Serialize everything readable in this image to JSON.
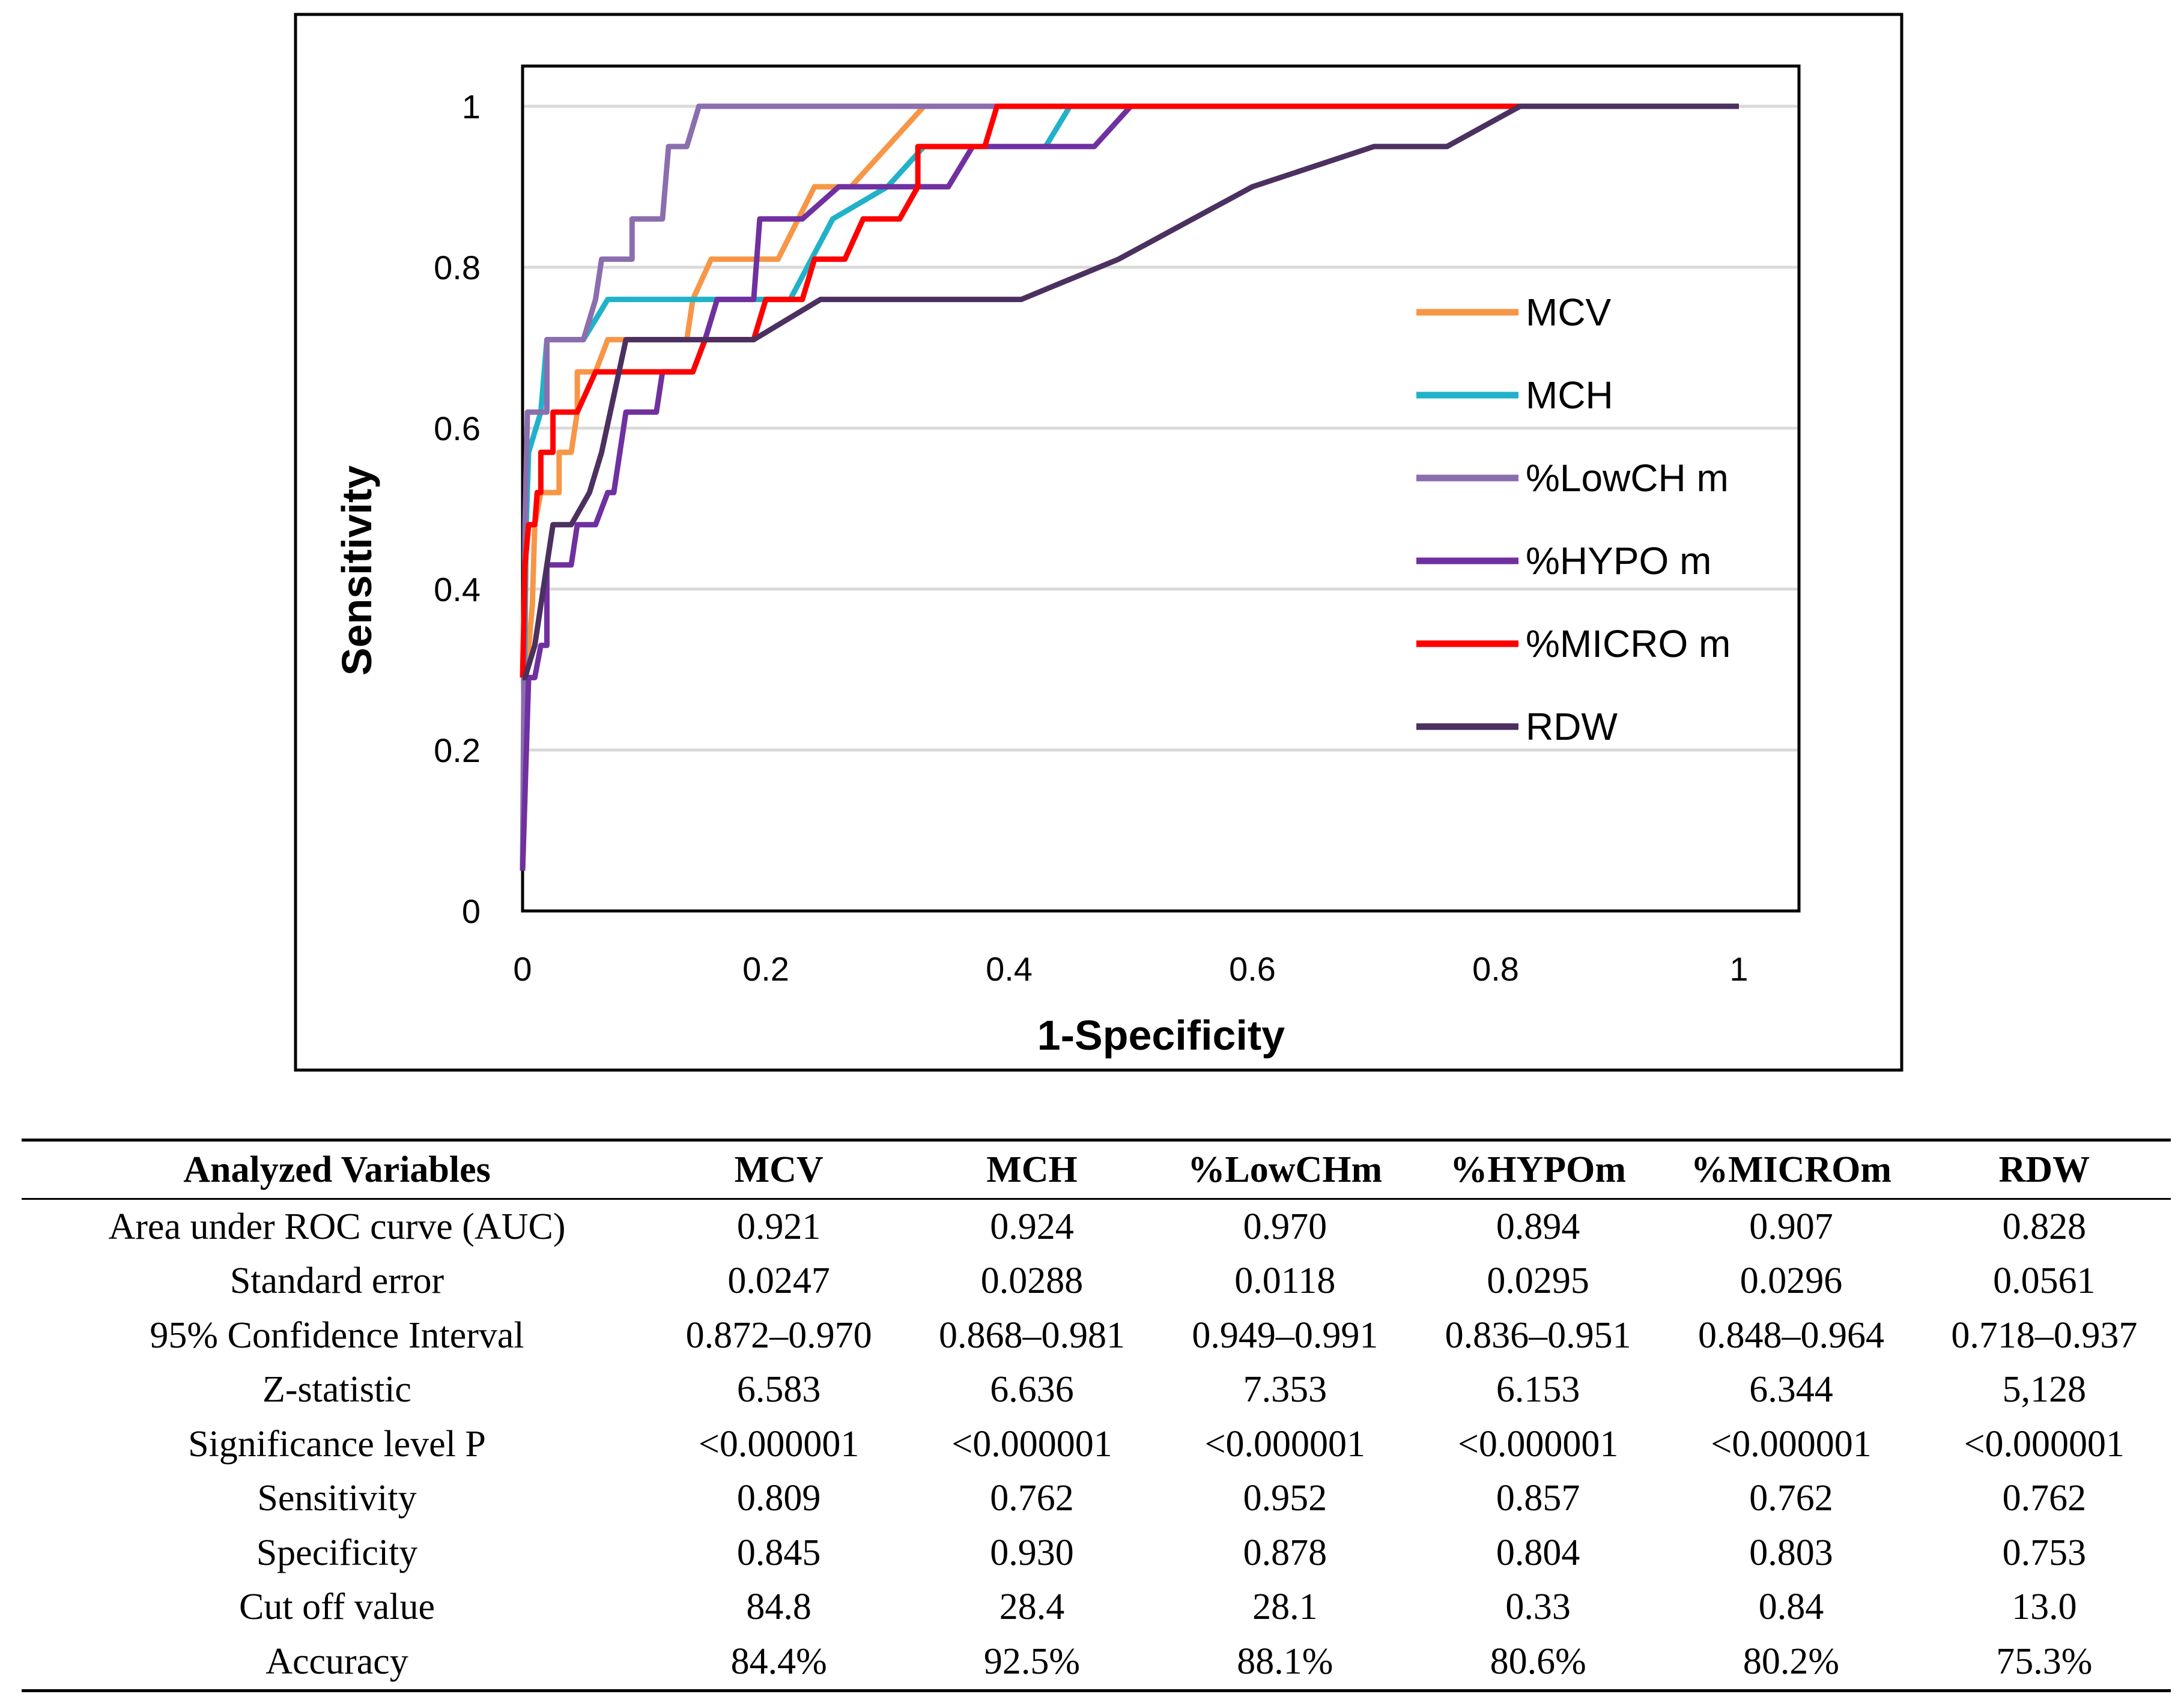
{
  "chart_data": {
    "type": "line",
    "xlabel": "1-Specificity",
    "ylabel": "Sensitivity",
    "xlim": [
      0,
      1
    ],
    "ylim": [
      0,
      1
    ],
    "xticks": [
      "0",
      "0.2",
      "0.4",
      "0.6",
      "0.8",
      "1"
    ],
    "yticks": [
      "0",
      "0.2",
      "0.4",
      "0.6",
      "0.8",
      "1"
    ],
    "grid": "horizontal",
    "legend_position": "right",
    "series": [
      {
        "name": "MCV",
        "color": "#F79646",
        "points": [
          [
            0,
            0.05
          ],
          [
            0.002,
            0.14
          ],
          [
            0.003,
            0.29
          ],
          [
            0.008,
            0.38
          ],
          [
            0.01,
            0.48
          ],
          [
            0.015,
            0.52
          ],
          [
            0.03,
            0.52
          ],
          [
            0.03,
            0.57
          ],
          [
            0.04,
            0.57
          ],
          [
            0.045,
            0.62
          ],
          [
            0.045,
            0.67
          ],
          [
            0.06,
            0.67
          ],
          [
            0.07,
            0.71
          ],
          [
            0.135,
            0.71
          ],
          [
            0.14,
            0.76
          ],
          [
            0.155,
            0.81
          ],
          [
            0.21,
            0.81
          ],
          [
            0.24,
            0.9
          ],
          [
            0.27,
            0.9
          ],
          [
            0.33,
            1
          ],
          [
            1,
            1
          ]
        ]
      },
      {
        "name": "MCH",
        "color": "#20B2C8",
        "points": [
          [
            0,
            0.05
          ],
          [
            0.003,
            0.48
          ],
          [
            0.005,
            0.57
          ],
          [
            0.015,
            0.62
          ],
          [
            0.02,
            0.71
          ],
          [
            0.05,
            0.71
          ],
          [
            0.07,
            0.76
          ],
          [
            0.16,
            0.76
          ],
          [
            0.22,
            0.76
          ],
          [
            0.255,
            0.86
          ],
          [
            0.3,
            0.9
          ],
          [
            0.33,
            0.95
          ],
          [
            0.38,
            0.95
          ],
          [
            0.43,
            0.95
          ],
          [
            0.45,
            1
          ],
          [
            1,
            1
          ]
        ]
      },
      {
        "name": "%LowCH m",
        "color": "#8B6EAE",
        "points": [
          [
            0,
            0.05
          ],
          [
            0.002,
            0.48
          ],
          [
            0.004,
            0.62
          ],
          [
            0.02,
            0.62
          ],
          [
            0.02,
            0.71
          ],
          [
            0.05,
            0.71
          ],
          [
            0.06,
            0.76
          ],
          [
            0.065,
            0.81
          ],
          [
            0.09,
            0.81
          ],
          [
            0.09,
            0.86
          ],
          [
            0.115,
            0.86
          ],
          [
            0.12,
            0.95
          ],
          [
            0.135,
            0.95
          ],
          [
            0.145,
            1
          ],
          [
            1,
            1
          ]
        ]
      },
      {
        "name": "%HYPO m",
        "color": "#7030A0",
        "points": [
          [
            0,
            0.05
          ],
          [
            0.005,
            0.29
          ],
          [
            0.01,
            0.29
          ],
          [
            0.015,
            0.33
          ],
          [
            0.02,
            0.33
          ],
          [
            0.02,
            0.43
          ],
          [
            0.04,
            0.43
          ],
          [
            0.045,
            0.48
          ],
          [
            0.06,
            0.48
          ],
          [
            0.07,
            0.52
          ],
          [
            0.075,
            0.52
          ],
          [
            0.08,
            0.57
          ],
          [
            0.085,
            0.62
          ],
          [
            0.11,
            0.62
          ],
          [
            0.115,
            0.67
          ],
          [
            0.14,
            0.67
          ],
          [
            0.15,
            0.71
          ],
          [
            0.16,
            0.76
          ],
          [
            0.19,
            0.76
          ],
          [
            0.195,
            0.86
          ],
          [
            0.23,
            0.86
          ],
          [
            0.26,
            0.9
          ],
          [
            0.35,
            0.9
          ],
          [
            0.37,
            0.95
          ],
          [
            0.47,
            0.95
          ],
          [
            0.5,
            1
          ],
          [
            1,
            1
          ]
        ]
      },
      {
        "name": "%MICRO m",
        "color": "#FF0000",
        "points": [
          [
            0,
            0.29
          ],
          [
            0.002,
            0.43
          ],
          [
            0.005,
            0.48
          ],
          [
            0.01,
            0.48
          ],
          [
            0.012,
            0.52
          ],
          [
            0.015,
            0.52
          ],
          [
            0.015,
            0.57
          ],
          [
            0.025,
            0.57
          ],
          [
            0.025,
            0.62
          ],
          [
            0.045,
            0.62
          ],
          [
            0.06,
            0.67
          ],
          [
            0.14,
            0.67
          ],
          [
            0.15,
            0.71
          ],
          [
            0.19,
            0.71
          ],
          [
            0.2,
            0.76
          ],
          [
            0.23,
            0.76
          ],
          [
            0.24,
            0.81
          ],
          [
            0.265,
            0.81
          ],
          [
            0.28,
            0.86
          ],
          [
            0.31,
            0.86
          ],
          [
            0.325,
            0.9
          ],
          [
            0.325,
            0.95
          ],
          [
            0.38,
            0.95
          ],
          [
            0.39,
            1
          ],
          [
            1,
            1
          ]
        ]
      },
      {
        "name": "RDW",
        "color": "#4B3060",
        "points": [
          [
            0,
            0.29
          ],
          [
            0.002,
            0.29
          ],
          [
            0.01,
            0.33
          ],
          [
            0.015,
            0.38
          ],
          [
            0.02,
            0.43
          ],
          [
            0.025,
            0.48
          ],
          [
            0.04,
            0.48
          ],
          [
            0.055,
            0.52
          ],
          [
            0.065,
            0.57
          ],
          [
            0.085,
            0.71
          ],
          [
            0.19,
            0.71
          ],
          [
            0.245,
            0.76
          ],
          [
            0.41,
            0.76
          ],
          [
            0.49,
            0.81
          ],
          [
            0.6,
            0.9
          ],
          [
            0.7,
            0.95
          ],
          [
            0.76,
            0.95
          ],
          [
            0.82,
            1
          ],
          [
            1,
            1
          ]
        ]
      }
    ]
  },
  "table": {
    "headers": [
      "Analyzed Variables",
      "MCV",
      "MCH",
      "%LowCHm",
      "%HYPOm",
      "%MICROm",
      "RDW"
    ],
    "rows": [
      [
        "Area under ROC curve (AUC)",
        "0.921",
        "0.924",
        "0.970",
        "0.894",
        "0.907",
        "0.828"
      ],
      [
        "Standard error",
        "0.0247",
        "0.0288",
        "0.0118",
        "0.0295",
        "0.0296",
        "0.0561"
      ],
      [
        "95% Confidence Interval",
        "0.872–0.970",
        "0.868–0.981",
        "0.949–0.991",
        "0.836–0.951",
        "0.848–0.964",
        "0.718–0.937"
      ],
      [
        "Z-statistic",
        "6.583",
        "6.636",
        "7.353",
        "6.153",
        "6.344",
        "5,128"
      ],
      [
        "Significance level P",
        "<0.000001",
        "<0.000001",
        "<0.000001",
        "<0.000001",
        "<0.000001",
        "<0.000001"
      ],
      [
        "Sensitivity",
        "0.809",
        "0.762",
        "0.952",
        "0.857",
        "0.762",
        "0.762"
      ],
      [
        "Specificity",
        "0.845",
        "0.930",
        "0.878",
        "0.804",
        "0.803",
        "0.753"
      ],
      [
        "Cut off value",
        "84.8",
        "28.4",
        "28.1",
        "0.33",
        "0.84",
        "13.0"
      ],
      [
        "Accuracy",
        "84.4%",
        "92.5%",
        "88.1%",
        "80.6%",
        "80.2%",
        "75.3%"
      ]
    ]
  }
}
